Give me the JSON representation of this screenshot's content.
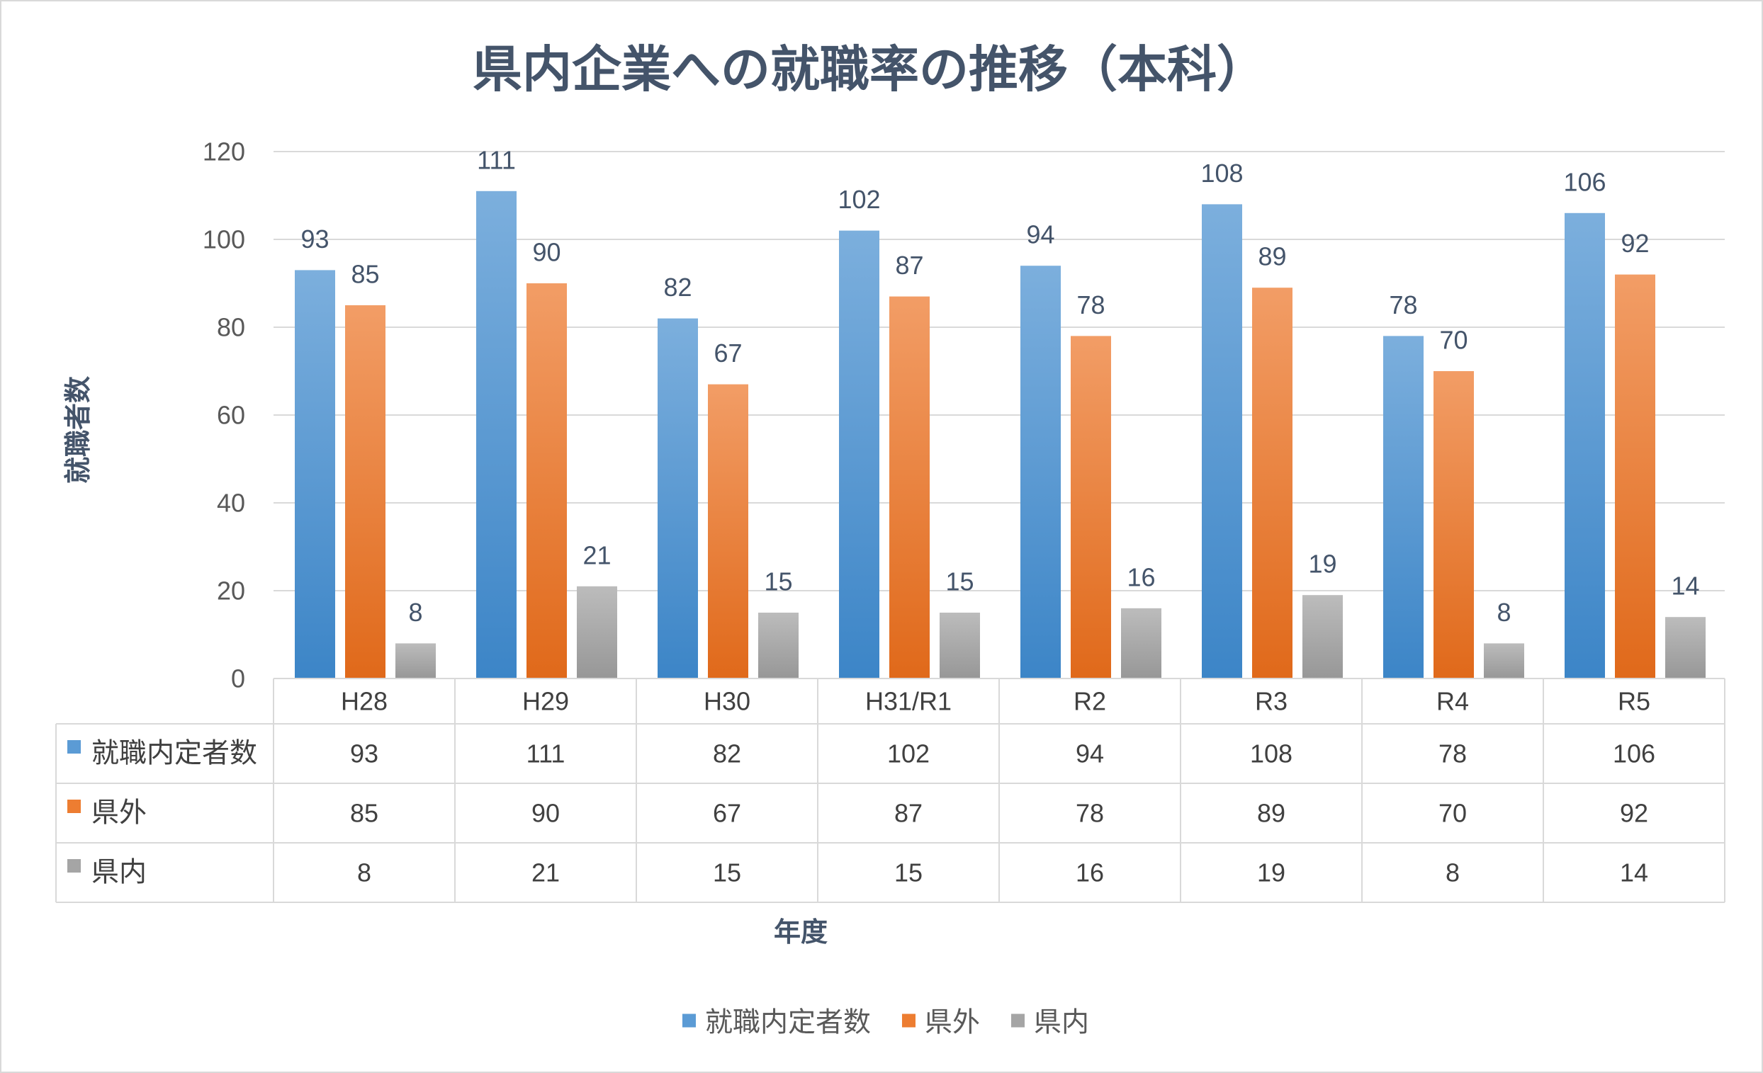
{
  "chart_data": {
    "type": "bar",
    "title": "県内企業への就職率の推移（本科）",
    "xlabel": "年度",
    "ylabel": "就職者数",
    "categories": [
      "H28",
      "H29",
      "H30",
      "H31/R1",
      "R2",
      "R3",
      "R4",
      "R5"
    ],
    "series": [
      {
        "name": "就職内定者数",
        "values": [
          93,
          111,
          82,
          102,
          94,
          108,
          78,
          106
        ],
        "color": "#5B9BD5",
        "gradient": [
          "#7CAFDD",
          "#3C85C7"
        ]
      },
      {
        "name": "県外",
        "values": [
          85,
          90,
          67,
          87,
          78,
          89,
          70,
          92
        ],
        "color": "#ED7D31",
        "gradient": [
          "#F29D66",
          "#E0691A"
        ]
      },
      {
        "name": "県内",
        "values": [
          8,
          21,
          15,
          15,
          16,
          19,
          8,
          14
        ],
        "color": "#A5A5A5",
        "gradient": [
          "#BCBCBC",
          "#979797"
        ]
      }
    ],
    "ylim": [
      0,
      120
    ],
    "yticks": [
      0,
      20,
      40,
      60,
      80,
      100,
      120
    ],
    "grid": true,
    "data_labels": true,
    "data_table": true,
    "legend": "bottom"
  }
}
